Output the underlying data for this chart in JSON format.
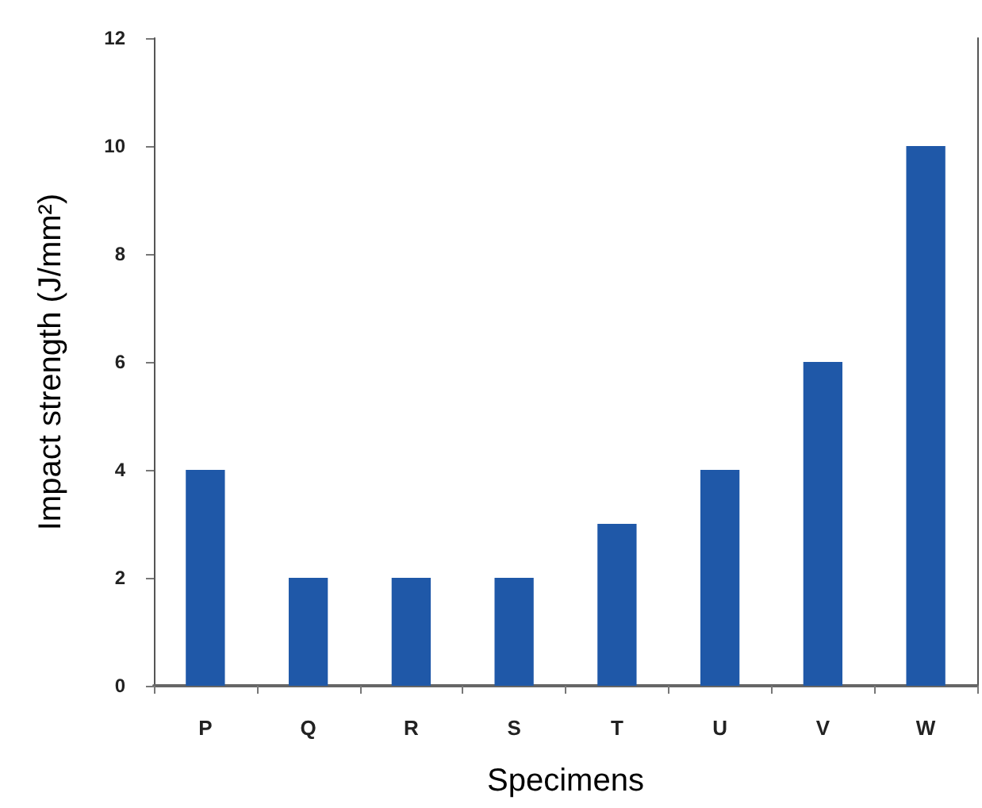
{
  "chart_data": {
    "type": "bar",
    "xlabel": "Specimens",
    "ylabel": "Impact strength (J/mm²)",
    "categories": [
      "P",
      "Q",
      "R",
      "S",
      "T",
      "U",
      "V",
      "W"
    ],
    "values": [
      4,
      2,
      2,
      2,
      3,
      4,
      6,
      10
    ],
    "color": "#1f58a8",
    "ylim": [
      0,
      12
    ],
    "yticks": [
      0,
      2,
      4,
      6,
      8,
      10,
      12
    ],
    "grid": false
  }
}
